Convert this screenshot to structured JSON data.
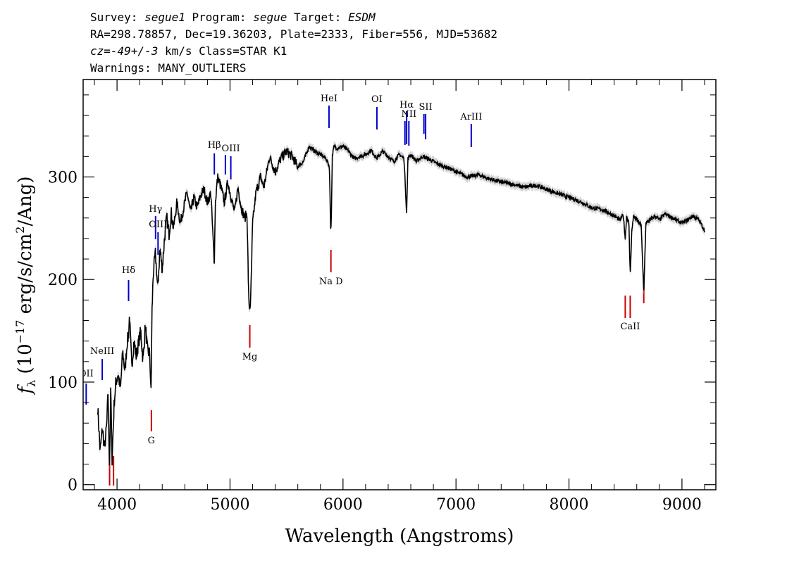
{
  "header": {
    "line1": [
      {
        "text": "Survey: ",
        "italic": false
      },
      {
        "text": "segue1",
        "italic": true
      },
      {
        "text": " Program: ",
        "italic": false
      },
      {
        "text": "segue",
        "italic": true
      },
      {
        "text": " Target: ",
        "italic": false
      },
      {
        "text": "ESDM",
        "italic": true
      }
    ],
    "line2": "RA=298.78857, Dec=19.36203, Plate=2333, Fiber=556, MJD=53682",
    "line3": [
      {
        "text": "cz=-49+/-3",
        "italic": true
      },
      {
        "text": " km/s Class=STAR K1",
        "italic": false
      }
    ],
    "line4": "Warnings: MANY_OUTLIERS"
  },
  "chart_data": {
    "type": "line",
    "xlabel": "Wavelength (Angstroms)",
    "ylabel": "f_λ (10^-17 erg/s/cm^2/Ang)",
    "xlim": [
      3700,
      9300
    ],
    "ylim": [
      -5,
      395
    ],
    "x_ticks": [
      4000,
      5000,
      6000,
      7000,
      8000,
      9000
    ],
    "y_ticks": [
      0,
      100,
      200,
      300
    ],
    "grid": false,
    "colors": {
      "spectrum": "#000000",
      "error_band": "#b0b0b0",
      "emission": "#0000cc",
      "absorption": "#cc0000"
    },
    "series": [
      {
        "x": [
          3830,
          3850,
          3870,
          3890,
          3910,
          3920,
          3933,
          3945,
          3955,
          3968,
          3975,
          3990,
          4010,
          4030,
          4050,
          4070,
          4090,
          4102,
          4110,
          4130,
          4150,
          4170,
          4190,
          4210,
          4230,
          4250,
          4270,
          4290,
          4300,
          4310,
          4320,
          4340,
          4360,
          4380,
          4400,
          4420,
          4440,
          4460,
          4480,
          4500,
          4530,
          4560,
          4590,
          4620,
          4650,
          4680,
          4710,
          4740,
          4770,
          4800,
          4830,
          4861,
          4870,
          4890,
          4920,
          4950,
          4980,
          5010,
          5040,
          5070,
          5100,
          5130,
          5150,
          5167,
          5175,
          5183,
          5200,
          5230,
          5270,
          5300,
          5350,
          5400,
          5450,
          5500,
          5550,
          5600,
          5650,
          5700,
          5750,
          5800,
          5850,
          5880,
          5890,
          5896,
          5905,
          5920,
          5950,
          6000,
          6050,
          6100,
          6150,
          6200,
          6250,
          6300,
          6350,
          6400,
          6450,
          6500,
          6540,
          6563,
          6575,
          6600,
          6650,
          6700,
          6750,
          6800,
          6850,
          6900,
          6950,
          7000,
          7100,
          7200,
          7300,
          7400,
          7500,
          7600,
          7700,
          7800,
          7900,
          8000,
          8100,
          8200,
          8300,
          8400,
          8450,
          8480,
          8498,
          8510,
          8530,
          8542,
          8555,
          8570,
          8600,
          8640,
          8662,
          8680,
          8720,
          8760,
          8800,
          8850,
          8900,
          8950,
          9000,
          9050,
          9100,
          9150,
          9200
        ],
        "y": [
          75,
          32,
          55,
          35,
          60,
          90,
          18,
          95,
          22,
          60,
          80,
          100,
          108,
          92,
          130,
          110,
          140,
          145,
          165,
          115,
          140,
          125,
          138,
          150,
          120,
          155,
          130,
          128,
          85,
          170,
          205,
          225,
          190,
          230,
          210,
          240,
          260,
          245,
          265,
          250,
          275,
          255,
          270,
          285,
          265,
          280,
          270,
          282,
          288,
          275,
          285,
          215,
          275,
          300,
          290,
          275,
          295,
          280,
          265,
          290,
          270,
          260,
          265,
          175,
          172,
          180,
          255,
          285,
          300,
          290,
          320,
          305,
          318,
          325,
          320,
          310,
          315,
          330,
          325,
          322,
          318,
          310,
          250,
          255,
          320,
          330,
          328,
          330,
          325,
          318,
          320,
          322,
          326,
          318,
          325,
          320,
          315,
          322,
          318,
          265,
          318,
          322,
          315,
          320,
          318,
          315,
          312,
          310,
          308,
          305,
          300,
          302,
          298,
          295,
          293,
          290,
          292,
          288,
          284,
          280,
          276,
          270,
          268,
          262,
          258,
          263,
          240,
          262,
          255,
          205,
          245,
          262,
          258,
          252,
          185,
          255,
          258,
          262,
          258,
          264,
          261,
          258,
          255,
          258,
          262,
          258,
          248
        ]
      }
    ],
    "line_markers": [
      {
        "label": "Hδ",
        "wavelength": 4102,
        "kind": "emission"
      },
      {
        "label": "Hγ",
        "wavelength": 4341,
        "kind": "emission"
      },
      {
        "label": "OIII",
        "wavelength": 4363,
        "kind": "emission"
      },
      {
        "label": "Hβ",
        "wavelength": 4861,
        "kind": "emission"
      },
      {
        "label": "OIII",
        "wavelength": 4959,
        "kind": "emission"
      },
      {
        "label": "OIII",
        "wavelength": 5007,
        "kind": "emission"
      },
      {
        "label": "HeI",
        "wavelength": 5876,
        "kind": "emission"
      },
      {
        "label": "OI",
        "wavelength": 6300,
        "kind": "emission"
      },
      {
        "label": "NII",
        "wavelength": 6548,
        "kind": "emission"
      },
      {
        "label": "Hα",
        "wavelength": 6563,
        "kind": "emission"
      },
      {
        "label": "NII",
        "wavelength": 6583,
        "kind": "emission"
      },
      {
        "label": "SII",
        "wavelength": 6716,
        "kind": "emission"
      },
      {
        "label": "SII",
        "wavelength": 6731,
        "kind": "emission"
      },
      {
        "label": "ArIII",
        "wavelength": 7135,
        "kind": "emission"
      },
      {
        "label": "NeIII",
        "wavelength": 3869,
        "kind": "emission"
      },
      {
        "label": "OII",
        "wavelength": 3727,
        "kind": "emission"
      },
      {
        "label": "G",
        "wavelength": 4304,
        "kind": "absorption"
      },
      {
        "label": "Mg",
        "wavelength": 5175,
        "kind": "absorption"
      },
      {
        "label": "Na D",
        "wavelength": 5893,
        "kind": "absorption"
      },
      {
        "label": "CaII",
        "wavelength": 8498,
        "kind": "absorption"
      },
      {
        "label": "CaII",
        "wavelength": 8542,
        "kind": "absorption"
      },
      {
        "label": "CaII",
        "wavelength": 8662,
        "kind": "absorption"
      },
      {
        "label": "",
        "wavelength": 3934,
        "kind": "absorption"
      },
      {
        "label": "",
        "wavelength": 3969,
        "kind": "absorption"
      }
    ]
  }
}
